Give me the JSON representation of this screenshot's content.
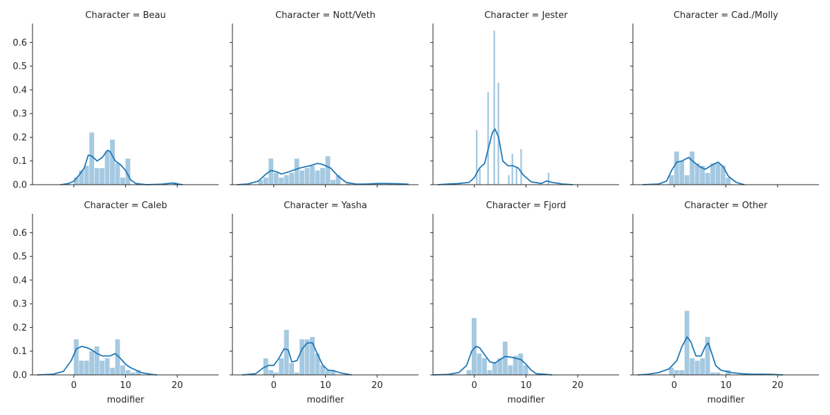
{
  "chart_data": {
    "type": "facet-grid-histogram-kde",
    "xlabel": "modifier",
    "ylim": [
      0,
      0.68
    ],
    "yticks": [
      0.0,
      0.1,
      0.2,
      0.3,
      0.4,
      0.5,
      0.6
    ],
    "ytick_labels": [
      "0.0",
      "0.1",
      "0.2",
      "0.3",
      "0.4",
      "0.5",
      "0.6"
    ],
    "xlim": [
      -8,
      28
    ],
    "xticks": [
      0,
      10,
      20
    ],
    "xtick_labels": [
      "0",
      "10",
      "20"
    ],
    "colors": {
      "bar": "#1f77b4",
      "bar_opacity": 0.4,
      "line": "#1f77b4"
    },
    "facets": [
      {
        "title": "Character = Beau",
        "bars": [
          [
            0,
            1,
            0.03
          ],
          [
            1,
            2,
            0.06
          ],
          [
            2,
            3,
            0.08
          ],
          [
            3,
            4,
            0.22
          ],
          [
            4,
            5,
            0.07
          ],
          [
            5,
            6,
            0.07
          ],
          [
            6,
            7,
            0.14
          ],
          [
            7,
            8,
            0.19
          ],
          [
            8,
            9,
            0.09
          ],
          [
            9,
            10,
            0.03
          ],
          [
            10,
            11,
            0.11
          ],
          [
            19,
            20,
            0.01
          ]
        ],
        "kde": [
          [
            -2.5,
            0
          ],
          [
            -1,
            0.005
          ],
          [
            0,
            0.015
          ],
          [
            1,
            0.04
          ],
          [
            2,
            0.07
          ],
          [
            2.8,
            0.125
          ],
          [
            3.5,
            0.12
          ],
          [
            4.5,
            0.1
          ],
          [
            5.5,
            0.115
          ],
          [
            6.5,
            0.145
          ],
          [
            7,
            0.14
          ],
          [
            8,
            0.1
          ],
          [
            9,
            0.085
          ],
          [
            10,
            0.06
          ],
          [
            11,
            0.02
          ],
          [
            12,
            0.005
          ],
          [
            14,
            0
          ],
          [
            17,
            0.002
          ],
          [
            19,
            0.007
          ],
          [
            21,
            0
          ]
        ]
      },
      {
        "title": "Character = Nott/Veth",
        "bars": [
          [
            -3,
            -2,
            0.02
          ],
          [
            -2,
            -1,
            0.03
          ],
          [
            -1,
            0,
            0.11
          ],
          [
            0,
            1,
            0.05
          ],
          [
            1,
            2,
            0.03
          ],
          [
            2,
            3,
            0.04
          ],
          [
            3,
            4,
            0.05
          ],
          [
            4,
            5,
            0.11
          ],
          [
            5,
            6,
            0.06
          ],
          [
            6,
            7,
            0.07
          ],
          [
            7,
            8,
            0.08
          ],
          [
            8,
            9,
            0.06
          ],
          [
            9,
            10,
            0.07
          ],
          [
            10,
            11,
            0.12
          ],
          [
            11,
            12,
            0.02
          ],
          [
            12,
            13,
            0.04
          ],
          [
            14,
            15,
            0.005
          ],
          [
            22,
            23,
            0.005
          ]
        ],
        "kde": [
          [
            -7,
            0
          ],
          [
            -5,
            0.003
          ],
          [
            -3,
            0.015
          ],
          [
            -1.5,
            0.045
          ],
          [
            -0.5,
            0.06
          ],
          [
            0.5,
            0.055
          ],
          [
            1.5,
            0.045
          ],
          [
            3,
            0.055
          ],
          [
            5,
            0.07
          ],
          [
            7,
            0.08
          ],
          [
            8.5,
            0.09
          ],
          [
            9.5,
            0.085
          ],
          [
            11,
            0.07
          ],
          [
            12.5,
            0.035
          ],
          [
            14,
            0.01
          ],
          [
            16,
            0.002
          ],
          [
            18,
            0.003
          ],
          [
            20,
            0.005
          ],
          [
            22,
            0.005
          ],
          [
            24,
            0.004
          ],
          [
            26,
            0.002
          ]
        ]
      },
      {
        "title": "Character = Jester",
        "bars": [
          [
            -4,
            -3.6,
            0.005
          ],
          [
            0.3,
            0.7,
            0.23
          ],
          [
            0.9,
            1.3,
            0.07
          ],
          [
            2.5,
            2.9,
            0.39
          ],
          [
            3.7,
            4.1,
            0.65
          ],
          [
            4.5,
            4.9,
            0.43
          ],
          [
            6.5,
            6.9,
            0.04
          ],
          [
            7.2,
            7.6,
            0.13
          ],
          [
            8,
            8.4,
            0.07
          ],
          [
            8.9,
            9.3,
            0.15
          ],
          [
            14.2,
            14.6,
            0.05
          ]
        ],
        "kde": [
          [
            -7,
            0
          ],
          [
            -5,
            0.003
          ],
          [
            -3,
            0.005
          ],
          [
            -1,
            0.01
          ],
          [
            0,
            0.03
          ],
          [
            1,
            0.07
          ],
          [
            2,
            0.09
          ],
          [
            2.8,
            0.16
          ],
          [
            3.5,
            0.22
          ],
          [
            4,
            0.235
          ],
          [
            4.7,
            0.2
          ],
          [
            5.5,
            0.1
          ],
          [
            6.5,
            0.08
          ],
          [
            7.5,
            0.08
          ],
          [
            8.5,
            0.07
          ],
          [
            9.5,
            0.04
          ],
          [
            11,
            0.012
          ],
          [
            13,
            0.005
          ],
          [
            14,
            0.016
          ],
          [
            15,
            0.01
          ],
          [
            17,
            0.003
          ],
          [
            19,
            0
          ]
        ]
      },
      {
        "title": "Character = Cad./Molly",
        "bars": [
          [
            -1,
            0,
            0.04
          ],
          [
            0,
            1,
            0.14
          ],
          [
            1,
            2,
            0.1
          ],
          [
            2,
            3,
            0.04
          ],
          [
            3,
            4,
            0.14
          ],
          [
            4,
            5,
            0.09
          ],
          [
            5,
            6,
            0.08
          ],
          [
            6,
            7,
            0.05
          ],
          [
            7,
            8,
            0.09
          ],
          [
            8,
            9,
            0.09
          ],
          [
            9,
            10,
            0.08
          ],
          [
            10,
            11,
            0.03
          ]
        ],
        "kde": [
          [
            -6,
            0
          ],
          [
            -3,
            0.003
          ],
          [
            -1.5,
            0.015
          ],
          [
            -0.5,
            0.06
          ],
          [
            0.5,
            0.095
          ],
          [
            1.5,
            0.1
          ],
          [
            2.8,
            0.115
          ],
          [
            3.8,
            0.095
          ],
          [
            5,
            0.075
          ],
          [
            6,
            0.065
          ],
          [
            7.5,
            0.085
          ],
          [
            8.5,
            0.095
          ],
          [
            9.5,
            0.075
          ],
          [
            10.5,
            0.035
          ],
          [
            12,
            0.01
          ],
          [
            13.5,
            0
          ]
        ]
      },
      {
        "title": "Character = Caleb",
        "bars": [
          [
            0,
            1,
            0.15
          ],
          [
            1,
            2,
            0.06
          ],
          [
            2,
            3,
            0.06
          ],
          [
            3,
            4,
            0.1
          ],
          [
            4,
            5,
            0.12
          ],
          [
            5,
            6,
            0.06
          ],
          [
            6,
            7,
            0.07
          ],
          [
            7,
            8,
            0.03
          ],
          [
            8,
            9,
            0.15
          ],
          [
            9,
            10,
            0.04
          ],
          [
            10,
            11,
            0.02
          ],
          [
            11,
            12,
            0.01
          ],
          [
            12,
            13,
            0.02
          ]
        ],
        "kde": [
          [
            -7,
            0
          ],
          [
            -4,
            0.003
          ],
          [
            -2,
            0.015
          ],
          [
            -0.5,
            0.06
          ],
          [
            0.5,
            0.11
          ],
          [
            1.5,
            0.12
          ],
          [
            2.5,
            0.115
          ],
          [
            3.5,
            0.105
          ],
          [
            4.5,
            0.09
          ],
          [
            5.5,
            0.08
          ],
          [
            7,
            0.08
          ],
          [
            8,
            0.09
          ],
          [
            9,
            0.07
          ],
          [
            10,
            0.045
          ],
          [
            11,
            0.03
          ],
          [
            12,
            0.02
          ],
          [
            13,
            0.01
          ],
          [
            15,
            0.002
          ],
          [
            16,
            0
          ]
        ]
      },
      {
        "title": "Character = Yasha",
        "bars": [
          [
            -2,
            -1,
            0.07
          ],
          [
            -1,
            0,
            0.02
          ],
          [
            0,
            1,
            0.01
          ],
          [
            1,
            2,
            0.07
          ],
          [
            2,
            3,
            0.19
          ],
          [
            3,
            4,
            0.05
          ],
          [
            4,
            5,
            0.01
          ],
          [
            5,
            6,
            0.15
          ],
          [
            6,
            7,
            0.15
          ],
          [
            7,
            8,
            0.16
          ],
          [
            8,
            9,
            0.09
          ],
          [
            9,
            10,
            0.04
          ],
          [
            10,
            11,
            0.02
          ],
          [
            11,
            12,
            0.02
          ]
        ],
        "kde": [
          [
            -6,
            0
          ],
          [
            -3.5,
            0.005
          ],
          [
            -2,
            0.03
          ],
          [
            -1,
            0.04
          ],
          [
            0,
            0.04
          ],
          [
            1,
            0.07
          ],
          [
            2,
            0.11
          ],
          [
            2.8,
            0.105
          ],
          [
            3.5,
            0.055
          ],
          [
            4.5,
            0.06
          ],
          [
            5.5,
            0.11
          ],
          [
            6.5,
            0.135
          ],
          [
            7.5,
            0.135
          ],
          [
            8.5,
            0.085
          ],
          [
            9.5,
            0.04
          ],
          [
            10.5,
            0.02
          ],
          [
            11.5,
            0.018
          ],
          [
            13,
            0.008
          ],
          [
            15,
            0
          ]
        ]
      },
      {
        "title": "Character = Fjord",
        "bars": [
          [
            -1.5,
            -0.5,
            0.02
          ],
          [
            -0.5,
            0.5,
            0.24
          ],
          [
            0.5,
            1.5,
            0.09
          ],
          [
            1.5,
            2.5,
            0.07
          ],
          [
            2.5,
            3.5,
            0.02
          ],
          [
            3.5,
            4.5,
            0.05
          ],
          [
            4.5,
            5.5,
            0.07
          ],
          [
            5.5,
            6.5,
            0.14
          ],
          [
            6.5,
            7.5,
            0.04
          ],
          [
            7.5,
            8.5,
            0.08
          ],
          [
            8.5,
            9.5,
            0.09
          ],
          [
            9.5,
            10.5,
            0.04
          ]
        ],
        "kde": [
          [
            -8,
            0
          ],
          [
            -5,
            0.002
          ],
          [
            -3,
            0.01
          ],
          [
            -1.5,
            0.04
          ],
          [
            -0.5,
            0.1
          ],
          [
            0.3,
            0.12
          ],
          [
            1,
            0.115
          ],
          [
            2,
            0.085
          ],
          [
            3,
            0.055
          ],
          [
            4,
            0.05
          ],
          [
            5,
            0.065
          ],
          [
            6,
            0.078
          ],
          [
            7,
            0.075
          ],
          [
            8,
            0.07
          ],
          [
            9,
            0.065
          ],
          [
            10,
            0.045
          ],
          [
            11,
            0.02
          ],
          [
            12,
            0.005
          ],
          [
            14,
            0.002
          ],
          [
            15,
            0
          ]
        ]
      },
      {
        "title": "Character = Other",
        "bars": [
          [
            -1,
            0,
            0.03
          ],
          [
            0,
            1,
            0.02
          ],
          [
            1,
            2,
            0.02
          ],
          [
            2,
            3,
            0.27
          ],
          [
            3,
            4,
            0.07
          ],
          [
            4,
            5,
            0.06
          ],
          [
            5,
            6,
            0.07
          ],
          [
            6,
            7,
            0.16
          ],
          [
            7,
            8,
            0.01
          ],
          [
            8,
            9,
            0.01
          ],
          [
            10,
            11,
            0.02
          ],
          [
            18,
            19,
            0.005
          ]
        ],
        "kde": [
          [
            -7,
            0
          ],
          [
            -5,
            0.003
          ],
          [
            -3,
            0.01
          ],
          [
            -1,
            0.025
          ],
          [
            0.5,
            0.06
          ],
          [
            1.5,
            0.12
          ],
          [
            2.5,
            0.16
          ],
          [
            3.2,
            0.14
          ],
          [
            4.2,
            0.08
          ],
          [
            5.2,
            0.08
          ],
          [
            6,
            0.12
          ],
          [
            6.6,
            0.135
          ],
          [
            7.2,
            0.095
          ],
          [
            8,
            0.04
          ],
          [
            9,
            0.02
          ],
          [
            10,
            0.015
          ],
          [
            11,
            0.01
          ],
          [
            13,
            0.005
          ],
          [
            15,
            0.003
          ],
          [
            17,
            0.003
          ],
          [
            19,
            0.002
          ],
          [
            21,
            0
          ]
        ]
      }
    ]
  }
}
